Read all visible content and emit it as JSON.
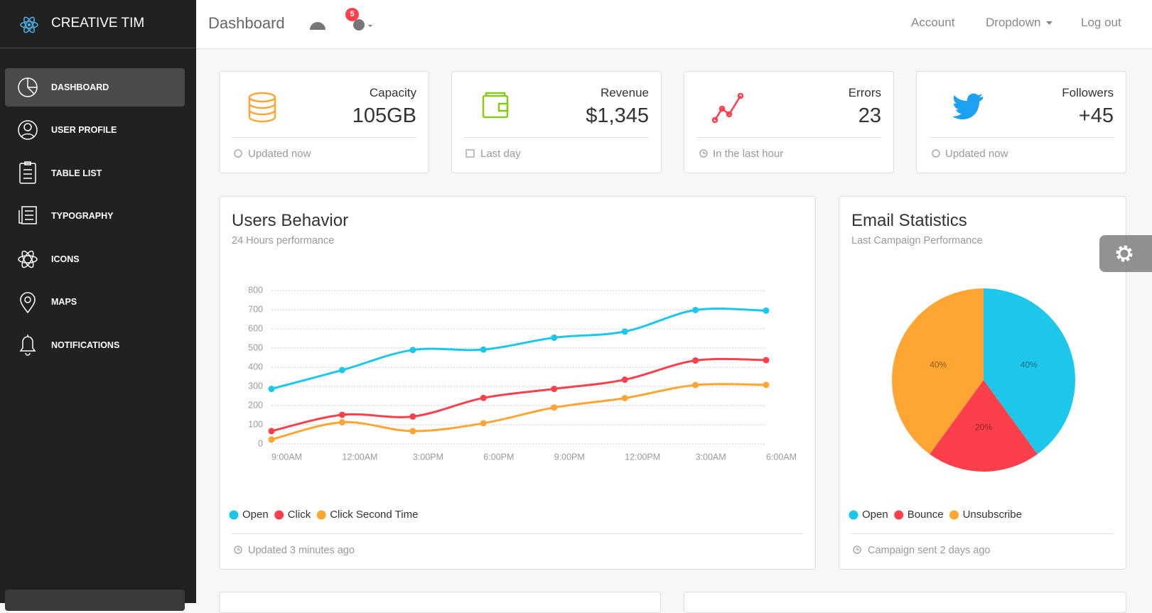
{
  "sidebar": {
    "brand": "CREATIVE TIM",
    "nav": [
      "DASHBOARD",
      "USER PROFILE",
      "TABLE LIST",
      "TYPOGRAPHY",
      "ICONS",
      "MAPS",
      "NOTIFICATIONS"
    ]
  },
  "navbar": {
    "title": "Dashboard",
    "badge": 5,
    "links": [
      "Account",
      "Dropdown",
      "Log out"
    ]
  },
  "stats": [
    {
      "label": "Capacity",
      "value": "105GB",
      "footer": "Updated now"
    },
    {
      "label": "Revenue",
      "value": "$1,345",
      "footer": "Last day"
    },
    {
      "label": "Errors",
      "value": "23",
      "footer": "In the last hour"
    },
    {
      "label": "Followers",
      "value": "+45",
      "footer": "Updated now"
    }
  ],
  "chart_data": [
    {
      "type": "line",
      "title": "Users Behavior",
      "subtitle": "24 Hours performance",
      "categories": [
        "9:00AM",
        "12:00AM",
        "3:00PM",
        "6:00PM",
        "9:00PM",
        "12:00PM",
        "3:00AM",
        "6:00AM"
      ],
      "series": [
        {
          "name": "Open",
          "color": "#1DC7EA",
          "values": [
            287,
            385,
            490,
            492,
            554,
            586,
            698,
            695
          ]
        },
        {
          "name": "Click",
          "color": "#FB404B",
          "values": [
            67,
            152,
            143,
            240,
            287,
            335,
            435,
            437
          ]
        },
        {
          "name": "Click Second Time",
          "color": "#FFA534",
          "values": [
            23,
            113,
            67,
            108,
            190,
            239,
            307,
            308
          ]
        }
      ],
      "ylim": [
        0,
        800
      ],
      "yticks": [
        0,
        100,
        200,
        300,
        400,
        500,
        600,
        700,
        800
      ],
      "grid": true,
      "footer": "Updated 3 minutes ago"
    },
    {
      "type": "pie",
      "title": "Email Statistics",
      "subtitle": "Last Campaign Performance",
      "categories": [
        "Open",
        "Bounce",
        "Unsubscribe"
      ],
      "values": [
        40,
        20,
        40
      ],
      "value_labels": [
        "40%",
        "20%",
        "40%"
      ],
      "colors": [
        "#1DC7EA",
        "#FB404B",
        "#FFA534"
      ],
      "footer": "Campaign sent 2 days ago"
    }
  ]
}
